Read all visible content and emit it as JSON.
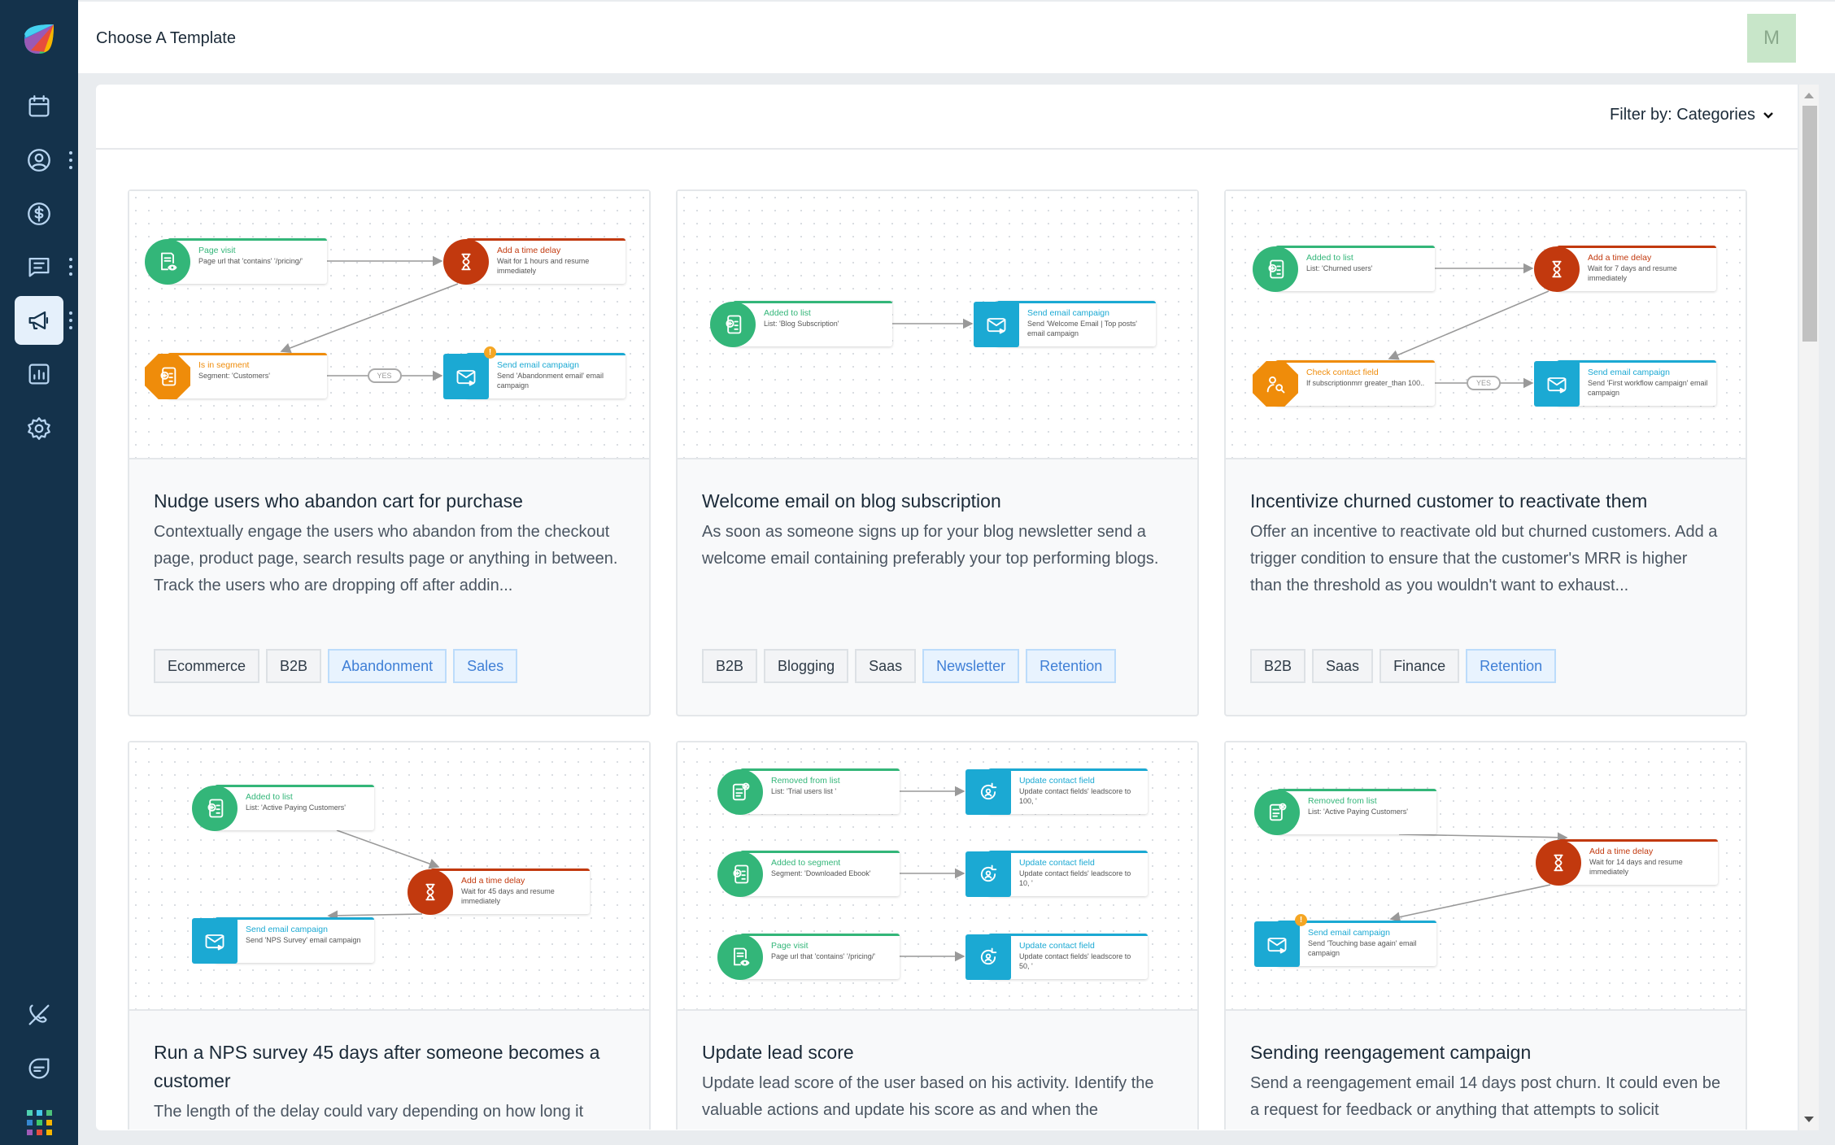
{
  "header": {
    "title": "Choose A Template",
    "avatar_initial": "M"
  },
  "filter": {
    "label": "Filter by: Categories"
  },
  "sidebar": {
    "items": [
      {
        "name": "calendar-icon"
      },
      {
        "name": "contacts-icon",
        "has_menu": true
      },
      {
        "name": "deals-icon"
      },
      {
        "name": "conversations-icon",
        "has_menu": true
      },
      {
        "name": "marketing-icon",
        "has_menu": true,
        "active": true
      },
      {
        "name": "reports-icon"
      },
      {
        "name": "settings-icon"
      }
    ],
    "bottom": [
      {
        "name": "phone-off-icon"
      },
      {
        "name": "chat-icon"
      },
      {
        "name": "apps-grid-icon"
      }
    ]
  },
  "colors": {
    "trigger": "#33b679",
    "delay": "#c2390e",
    "condition": "#ef8c0a",
    "action": "#1ba9d3",
    "sidebar": "#14324b",
    "tag_highlight": "#3f7fd6"
  },
  "templates": [
    {
      "title": "Nudge users who abandon cart for purchase",
      "description": "Contextually engage the users who abandon from the checkout page, product page, search results page or anything in between. Track the users who are dropping off after addin...",
      "tags": [
        {
          "label": "Ecommerce"
        },
        {
          "label": "B2B"
        },
        {
          "label": "Abandonment",
          "highlight": true
        },
        {
          "label": "Sales",
          "highlight": true
        }
      ],
      "nodes": [
        {
          "kind": "trigger",
          "icon": "page-visit-icon",
          "title": "Page visit",
          "detail": "Page url that 'contains' '/pricing/'"
        },
        {
          "kind": "delay",
          "icon": "hourglass-icon",
          "title": "Add a time delay",
          "detail": "Wait for 1 hours and resume immediately"
        },
        {
          "kind": "condition",
          "icon": "segment-icon",
          "title": "Is in segment",
          "detail": "Segment: 'Customers'"
        },
        {
          "kind": "action",
          "icon": "email-icon",
          "title": "Send email campaign",
          "detail": "Send 'Abandonment email' email campaign",
          "warning": "!"
        }
      ],
      "edges": [
        {
          "from": 0,
          "to": 1
        },
        {
          "from": 1,
          "to": 2
        },
        {
          "from": 2,
          "to": 3,
          "label": "YES"
        }
      ]
    },
    {
      "title": "Welcome email on blog subscription",
      "description": "As soon as someone signs up for your blog newsletter send a welcome email containing preferably your top performing blogs.",
      "tags": [
        {
          "label": "B2B"
        },
        {
          "label": "Blogging"
        },
        {
          "label": "Saas"
        },
        {
          "label": "Newsletter",
          "highlight": true
        },
        {
          "label": "Retention",
          "highlight": true
        }
      ],
      "nodes": [
        {
          "kind": "trigger",
          "icon": "list-add-icon",
          "title": "Added to list",
          "detail": "List: 'Blog Subscription'"
        },
        {
          "kind": "action",
          "icon": "email-icon",
          "title": "Send email campaign",
          "detail": "Send 'Welcome Email | Top posts' email campaign"
        }
      ],
      "edges": [
        {
          "from": 0,
          "to": 1
        }
      ]
    },
    {
      "title": "Incentivize churned customer to reactivate them",
      "description": "Offer an incentive to reactivate old but churned customers. Add a trigger condition to ensure that the customer's MRR is higher than the threshold as you wouldn't want to exhaust...",
      "tags": [
        {
          "label": "B2B"
        },
        {
          "label": "Saas"
        },
        {
          "label": "Finance"
        },
        {
          "label": "Retention",
          "highlight": true
        }
      ],
      "nodes": [
        {
          "kind": "trigger",
          "icon": "list-add-icon",
          "title": "Added to list",
          "detail": "List: 'Churned users'"
        },
        {
          "kind": "delay",
          "icon": "hourglass-icon",
          "title": "Add a time delay",
          "detail": "Wait for 7 days and resume immediately"
        },
        {
          "kind": "condition",
          "icon": "contact-search-icon",
          "title": "Check contact field",
          "detail": "If subscriptionmrr greater_than 100.."
        },
        {
          "kind": "action",
          "icon": "email-icon",
          "title": "Send email campaign",
          "detail": "Send 'First workflow campaign' email campaign"
        }
      ],
      "edges": [
        {
          "from": 0,
          "to": 1
        },
        {
          "from": 1,
          "to": 2
        },
        {
          "from": 2,
          "to": 3,
          "label": "YES"
        }
      ]
    },
    {
      "title": "Run a NPS survey 45 days after someone becomes a customer",
      "description": "The length of the delay could vary depending on how long it",
      "tags": [],
      "nodes": [
        {
          "kind": "trigger",
          "icon": "list-add-icon",
          "title": "Added to list",
          "detail": "List: 'Active Paying Customers'"
        },
        {
          "kind": "delay",
          "icon": "hourglass-icon",
          "title": "Add a time delay",
          "detail": "Wait for 45 days and resume immediately"
        },
        {
          "kind": "action",
          "icon": "email-icon",
          "title": "Send email campaign",
          "detail": "Send 'NPS Survey' email campaign"
        }
      ],
      "edges": [
        {
          "from": 0,
          "to": 1
        },
        {
          "from": 1,
          "to": 2
        }
      ]
    },
    {
      "title": "Update lead score",
      "description": "Update lead score of the user based on his activity. Identify the valuable actions and update his score as and when the",
      "tags": [],
      "nodes": [
        {
          "kind": "trigger",
          "icon": "list-remove-icon",
          "title": "Removed from list",
          "detail": "List: 'Trial users list '"
        },
        {
          "kind": "action",
          "icon": "update-contact-icon",
          "title": "Update contact field",
          "detail": "Update contact fields' leadscore to 100, '"
        },
        {
          "kind": "trigger",
          "icon": "segment-icon",
          "title": "Added to segment",
          "detail": "Segment: 'Downloaded Ebook'"
        },
        {
          "kind": "action",
          "icon": "update-contact-icon",
          "title": "Update contact field",
          "detail": "Update contact fields' leadscore to 10, '"
        },
        {
          "kind": "trigger",
          "icon": "page-visit-icon",
          "title": "Page visit",
          "detail": "Page url that 'contains' '/pricing/'"
        },
        {
          "kind": "action",
          "icon": "update-contact-icon",
          "title": "Update contact field",
          "detail": "Update contact fields' leadscore to 50, '"
        }
      ],
      "edges": [
        {
          "from": 0,
          "to": 1
        },
        {
          "from": 2,
          "to": 3
        },
        {
          "from": 4,
          "to": 5
        }
      ]
    },
    {
      "title": "Sending reengagement campaign",
      "description": "Send a reengagement email 14 days post churn. It could even be a request for feedback or anything that attempts to solicit",
      "tags": [],
      "nodes": [
        {
          "kind": "trigger",
          "icon": "list-remove-icon",
          "title": "Removed from list",
          "detail": "List: 'Active Paying Customers'"
        },
        {
          "kind": "delay",
          "icon": "hourglass-icon",
          "title": "Add a time delay",
          "detail": "Wait for 14 days and resume immediately"
        },
        {
          "kind": "action",
          "icon": "email-icon",
          "title": "Send email campaign",
          "detail": "Send 'Touching base again' email campaign",
          "warning": "!"
        }
      ],
      "edges": [
        {
          "from": 0,
          "to": 1
        },
        {
          "from": 1,
          "to": 2
        }
      ]
    }
  ]
}
